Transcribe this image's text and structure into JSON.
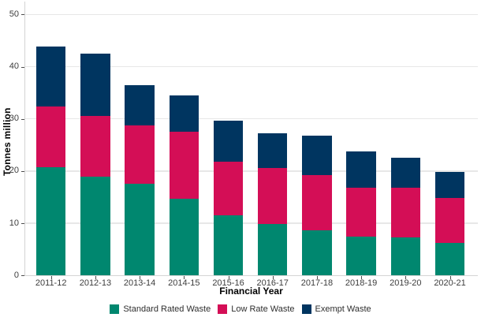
{
  "chart_data": {
    "type": "bar",
    "stacked": true,
    "title": "",
    "xlabel": "Financial Year",
    "ylabel": "Tonnes million",
    "ylim": [
      0,
      50
    ],
    "yticks": [
      0,
      10,
      20,
      30,
      40,
      50
    ],
    "grid": "horizontal",
    "legend_position": "bottom",
    "categories": [
      "2011-12",
      "2012-13",
      "2013-14",
      "2014-15",
      "2015-16",
      "2016-17",
      "2017-18",
      "2018-19",
      "2019-20",
      "2020-21"
    ],
    "series": [
      {
        "name": "Standard Rated Waste",
        "color": "#00876F",
        "values": [
          20.7,
          18.9,
          17.6,
          14.7,
          11.5,
          9.9,
          8.7,
          7.4,
          7.3,
          6.3
        ]
      },
      {
        "name": "Low Rate Waste",
        "color": "#D40E56",
        "values": [
          11.6,
          11.7,
          11.1,
          12.8,
          10.3,
          10.7,
          10.6,
          9.4,
          9.5,
          8.5
        ]
      },
      {
        "name": "Exempt Waste",
        "color": "#003560",
        "values": [
          11.6,
          11.9,
          7.8,
          7.0,
          7.9,
          6.7,
          7.5,
          6.9,
          5.8,
          5.1
        ]
      }
    ],
    "totals": [
      43.9,
      42.5,
      36.5,
      34.5,
      29.7,
      27.3,
      26.8,
      23.7,
      22.6,
      19.9
    ]
  },
  "axis_colors": {
    "grid": "#e7e7e7",
    "axis_line": "#d4d4d4",
    "tick_text": "#3d3d3d"
  }
}
